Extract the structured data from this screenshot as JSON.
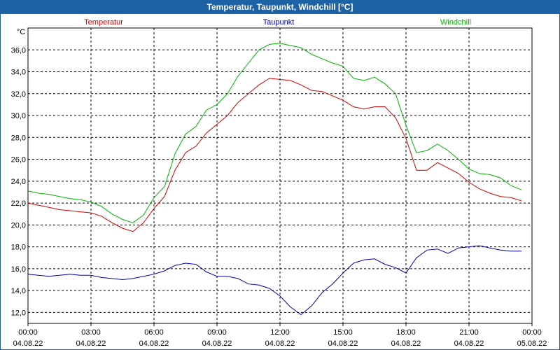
{
  "chart_data": {
    "type": "line",
    "title": "Temperatur, Taupunkt, Windchill [°C]",
    "ylabel": "°C",
    "ylim": [
      11,
      38
    ],
    "yticks": [
      "12,0",
      "14,0",
      "16,0",
      "18,0",
      "20,0",
      "22,0",
      "24,0",
      "26,0",
      "28,0",
      "30,0",
      "32,0",
      "34,0",
      "36,0"
    ],
    "ytick_values": [
      12,
      14,
      16,
      18,
      20,
      22,
      24,
      26,
      28,
      30,
      32,
      34,
      36
    ],
    "xlim": [
      0,
      24
    ],
    "xticks": [
      {
        "time": "00:00",
        "date": "04.08.22"
      },
      {
        "time": "03:00",
        "date": "04.08.22"
      },
      {
        "time": "06:00",
        "date": "04.08.22"
      },
      {
        "time": "09:00",
        "date": "04.08.22"
      },
      {
        "time": "12:00",
        "date": "04.08.22"
      },
      {
        "time": "15:00",
        "date": "04.08.22"
      },
      {
        "time": "18:00",
        "date": "04.08.22"
      },
      {
        "time": "21:00",
        "date": "04.08.22"
      },
      {
        "time": "00:00",
        "date": "05.08.22"
      }
    ],
    "xtick_hours": [
      0,
      3,
      6,
      9,
      12,
      15,
      18,
      21,
      24
    ],
    "grid": true,
    "legend": [
      "Temperatur",
      "Taupunkt",
      "Windchill"
    ],
    "x": [
      0,
      0.5,
      1,
      1.5,
      2,
      2.5,
      3,
      3.5,
      4,
      4.5,
      5,
      5.5,
      6,
      6.5,
      7,
      7.5,
      8,
      8.5,
      9,
      9.5,
      10,
      10.5,
      11,
      11.5,
      12,
      12.5,
      13,
      13.5,
      14,
      14.5,
      15,
      15.5,
      16,
      16.5,
      17,
      17.5,
      18,
      18.5,
      19,
      19.5,
      20,
      20.5,
      21,
      21.5,
      22,
      22.5,
      23,
      23.5
    ],
    "series": [
      {
        "name": "Temperatur",
        "color": "#d40000",
        "values": [
          22.0,
          21.8,
          21.6,
          21.4,
          21.3,
          21.2,
          21.1,
          20.8,
          20.2,
          19.7,
          19.4,
          20.2,
          21.5,
          22.6,
          25.0,
          26.6,
          27.2,
          28.4,
          29.2,
          30.0,
          31.2,
          32.0,
          32.8,
          33.4,
          33.3,
          33.2,
          32.8,
          32.3,
          32.2,
          31.8,
          31.4,
          30.8,
          30.6,
          30.8,
          30.8,
          29.8,
          27.9,
          25.0,
          25.0,
          25.7,
          25.2,
          24.7,
          23.9,
          23.3,
          22.9,
          22.6,
          22.5,
          22.2
        ]
      },
      {
        "name": "Taupunkt",
        "color": "#0000b4",
        "values": [
          15.5,
          15.4,
          15.3,
          15.4,
          15.5,
          15.4,
          15.4,
          15.2,
          15.1,
          15.0,
          15.1,
          15.3,
          15.5,
          15.8,
          16.3,
          16.5,
          16.4,
          15.7,
          15.3,
          15.3,
          15.1,
          14.6,
          14.5,
          14.2,
          13.5,
          12.5,
          11.8,
          12.6,
          13.8,
          14.6,
          15.6,
          16.5,
          16.8,
          16.9,
          16.4,
          16.1,
          15.6,
          17.0,
          17.7,
          17.8,
          17.4,
          17.9,
          18.0,
          18.1,
          17.9,
          17.7,
          17.6,
          17.6
        ]
      },
      {
        "name": "Windchill",
        "color": "#00b400",
        "values": [
          23.1,
          22.9,
          22.8,
          22.6,
          22.4,
          22.3,
          22.1,
          21.7,
          21.0,
          20.5,
          20.2,
          20.9,
          22.5,
          23.5,
          26.5,
          28.3,
          29.0,
          30.5,
          31.0,
          32.0,
          33.6,
          34.8,
          36.0,
          36.5,
          36.6,
          36.4,
          36.2,
          35.6,
          35.2,
          34.8,
          34.5,
          33.4,
          33.2,
          33.5,
          32.9,
          32.0,
          29.1,
          26.6,
          26.8,
          27.4,
          26.8,
          26.0,
          25.1,
          24.7,
          24.6,
          24.3,
          23.6,
          23.2
        ]
      }
    ]
  }
}
